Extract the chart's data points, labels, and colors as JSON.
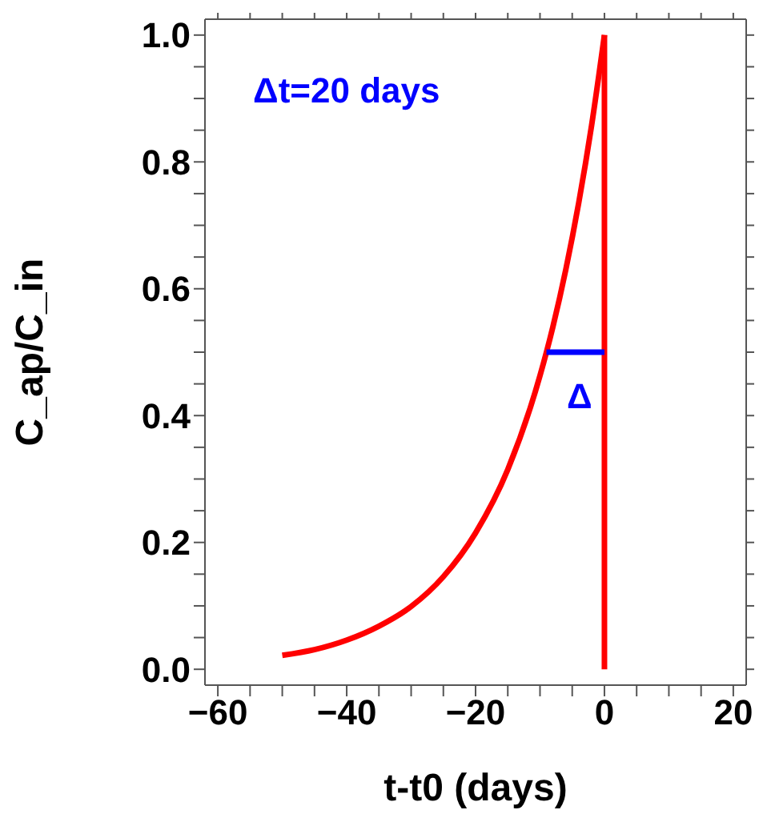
{
  "chart_data": {
    "type": "line",
    "xlabel": "t-t0 (days)",
    "ylabel": "C_ap/C_in",
    "xlim": [
      -62,
      22
    ],
    "ylim": [
      -0.025,
      1.025
    ],
    "xticks": [
      -60,
      {
        "value": -55,
        "label": null
      },
      {
        "value": -50,
        "label": null
      },
      {
        "value": -45,
        "label": null
      },
      -40,
      {
        "value": -35,
        "label": null
      },
      {
        "value": -30,
        "label": null
      },
      {
        "value": -25,
        "label": null
      },
      -20,
      {
        "value": -15,
        "label": null
      },
      {
        "value": -10,
        "label": null
      },
      {
        "value": -5,
        "label": null
      },
      0,
      {
        "value": 5,
        "label": null
      },
      {
        "value": 10,
        "label": null
      },
      {
        "value": 15,
        "label": null
      },
      20
    ],
    "yticks": [
      {
        "value": 0,
        "label": "0.0"
      },
      {
        "value": 0.05,
        "label": null
      },
      {
        "value": 0.1,
        "label": null
      },
      {
        "value": 0.15,
        "label": null
      },
      0.2,
      {
        "value": 0.25,
        "label": null
      },
      {
        "value": 0.3,
        "label": null
      },
      {
        "value": 0.35,
        "label": null
      },
      0.4,
      {
        "value": 0.45,
        "label": null
      },
      {
        "value": 0.5,
        "label": null
      },
      {
        "value": 0.55,
        "label": null
      },
      0.6,
      {
        "value": 0.65,
        "label": null
      },
      {
        "value": 0.7,
        "label": null
      },
      {
        "value": 0.75,
        "label": null
      },
      0.8,
      {
        "value": 0.85,
        "label": null
      },
      {
        "value": 0.9,
        "label": null
      },
      {
        "value": 0.95,
        "label": null
      },
      {
        "value": 1,
        "label": "1.0"
      }
    ],
    "marker": "none",
    "line_style": "solid",
    "series": [
      {
        "color": "#ff0000",
        "x": [
          -50,
          -45,
          -40,
          -35,
          -30,
          -25,
          -20,
          -15,
          -10,
          -8,
          -6,
          -4,
          -2,
          0
        ],
        "values": [
          0.022,
          0.031,
          0.046,
          0.068,
          0.099,
          0.146,
          0.215,
          0.315,
          0.463,
          0.54,
          0.63,
          0.735,
          0.857,
          1.0
        ]
      },
      {
        "color": "#ff0000",
        "x": [
          0,
          0
        ],
        "values": [
          0,
          1
        ]
      },
      {
        "color": "#0000ff",
        "x": [
          -9,
          0
        ],
        "values": [
          0.5,
          0.5
        ]
      }
    ],
    "annotations": [
      "Δt=20 days",
      "Δ"
    ]
  }
}
